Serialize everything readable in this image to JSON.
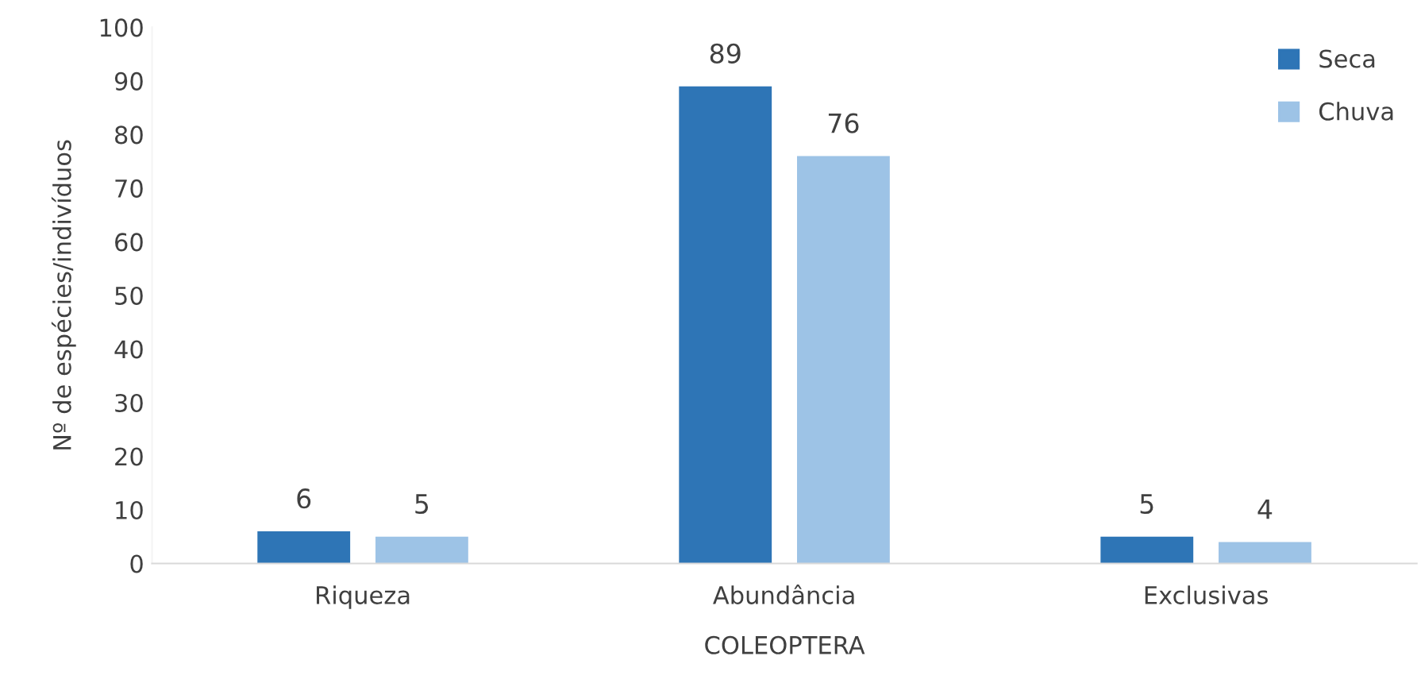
{
  "chart_data": {
    "type": "bar",
    "xlabel": "COLEOPTERA",
    "ylabel": "Nº de espécies/indivíduos",
    "categories": [
      "Riqueza",
      "Abundância",
      "Exclusivas"
    ],
    "series": [
      {
        "name": "Seca",
        "color": "#2e75b6",
        "values": [
          6,
          89,
          5
        ]
      },
      {
        "name": "Chuva",
        "color": "#9dc3e6",
        "values": [
          5,
          76,
          4
        ]
      }
    ],
    "ylim": [
      0,
      100
    ],
    "yticks": [
      0,
      10,
      20,
      30,
      40,
      50,
      60,
      70,
      80,
      90,
      100
    ],
    "grid": false,
    "legend": "top right",
    "data_labels": true
  }
}
